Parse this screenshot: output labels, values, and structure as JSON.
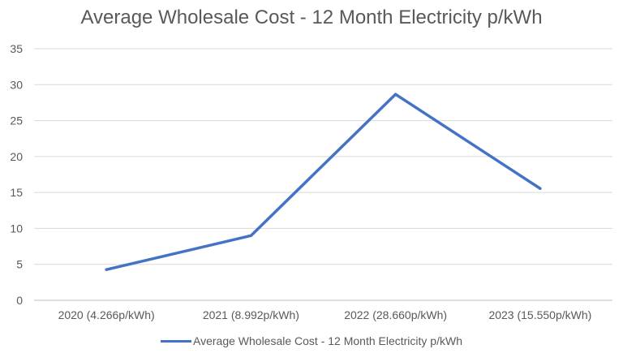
{
  "chart_data": {
    "type": "line",
    "title": "Average Wholesale Cost - 12 Month Electricity p/kWh",
    "xlabel": "",
    "ylabel": "",
    "categories": [
      "2020 (4.266p/kWh)",
      "2021 (8.992p/kWh)",
      "2022 (28.660p/kWh)",
      "2023 (15.550p/kWh)"
    ],
    "series": [
      {
        "name": "Average Wholesale Cost - 12 Month Electricity p/kWh",
        "values": [
          4.266,
          8.992,
          28.66,
          15.55
        ],
        "color": "#4472c4"
      }
    ],
    "ylim": [
      0,
      35
    ],
    "yticks": [
      0,
      5,
      10,
      15,
      20,
      25,
      30,
      35
    ],
    "grid": true,
    "legend_position": "bottom"
  }
}
